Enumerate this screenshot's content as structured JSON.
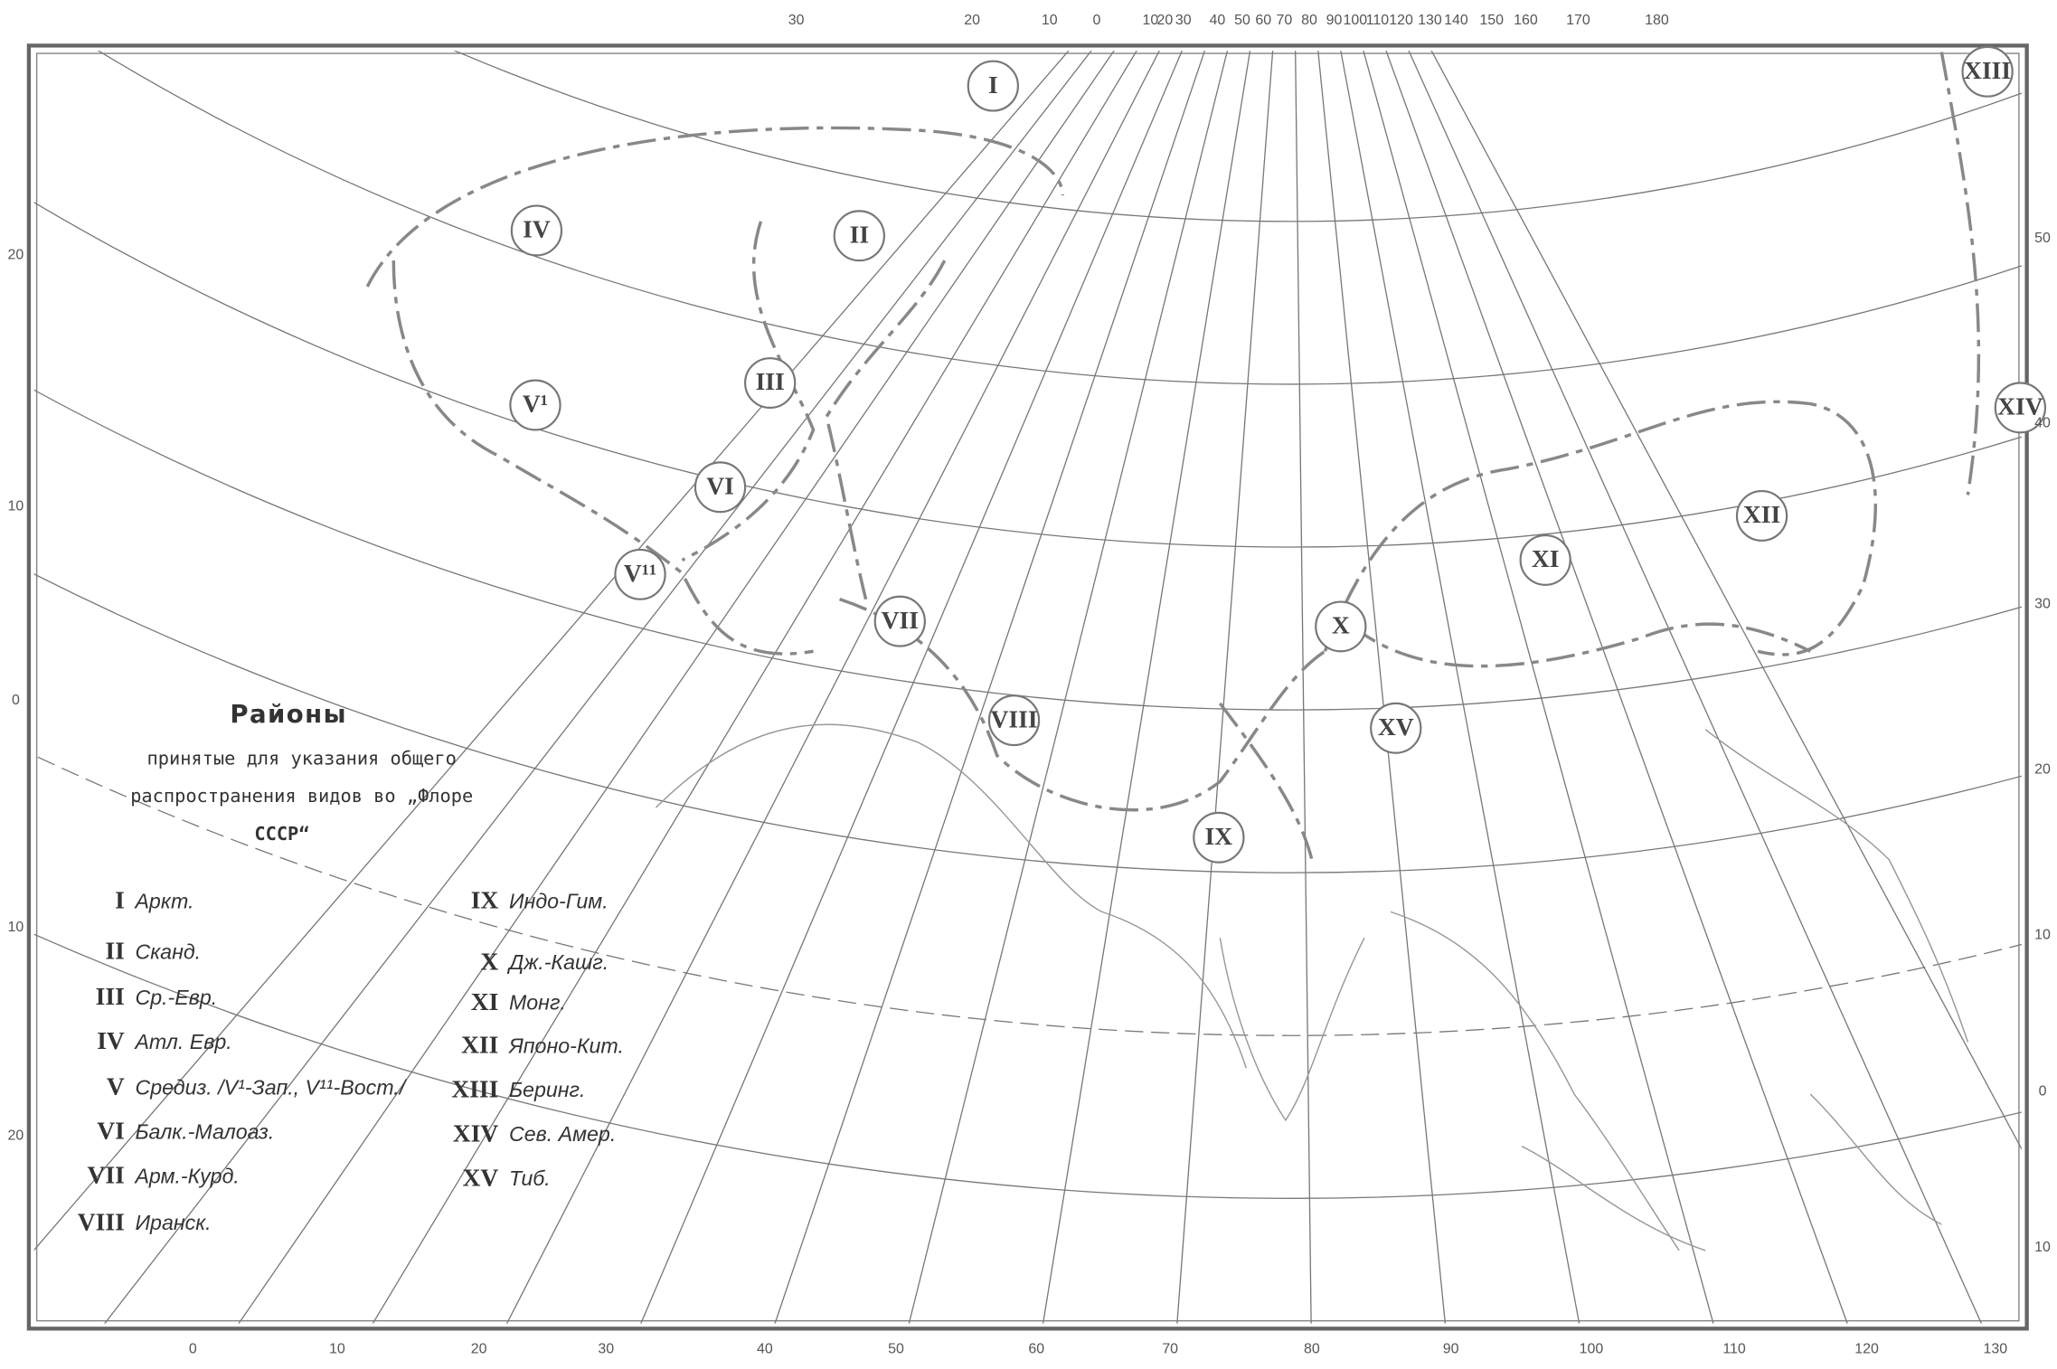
{
  "title": "Районы",
  "subtitle_lines": [
    "принятые для указания общего",
    "распространения видов во „Флоре",
    "СССР“"
  ],
  "legend": [
    {
      "numeral": "I",
      "name": "Аркт."
    },
    {
      "numeral": "II",
      "name": "Сканд."
    },
    {
      "numeral": "III",
      "name": "Ср.-Евр."
    },
    {
      "numeral": "IV",
      "name": "Атл. Евр."
    },
    {
      "numeral": "V",
      "name": "Средиз. /V¹-Зап., V¹¹-Вост./"
    },
    {
      "numeral": "VI",
      "name": "Балк.-Малоаз."
    },
    {
      "numeral": "VII",
      "name": "Арм.-Курд."
    },
    {
      "numeral": "VIII",
      "name": "Иранск."
    },
    {
      "numeral": "IX",
      "name": "Индо-Гим."
    },
    {
      "numeral": "X",
      "name": "Дж.-Кашг."
    },
    {
      "numeral": "XI",
      "name": "Монг."
    },
    {
      "numeral": "XII",
      "name": "Японо-Кит."
    },
    {
      "numeral": "XIII",
      "name": "Беринг."
    },
    {
      "numeral": "XIV",
      "name": "Сев. Амер."
    },
    {
      "numeral": "XV",
      "name": "Тиб."
    }
  ],
  "map_labels": [
    "I",
    "II",
    "III",
    "IV",
    "V¹",
    "V¹¹",
    "VI",
    "VII",
    "VIII",
    "IX",
    "X",
    "XI",
    "XII",
    "XIII",
    "XIV",
    "XV"
  ],
  "top_scale": [
    "30",
    "20",
    "10",
    "0",
    "10",
    "20",
    "30",
    "40",
    "50",
    "60",
    "70",
    "80",
    "90",
    "100",
    "110",
    "120",
    "130",
    "140",
    "150",
    "160",
    "170",
    "180"
  ],
  "bottom_scale": [
    "0",
    "10",
    "20",
    "30",
    "40",
    "50",
    "60",
    "70",
    "80",
    "90",
    "100",
    "110",
    "120",
    "130"
  ],
  "left_scale": [
    "20",
    "10",
    "0",
    "10",
    "20"
  ],
  "right_scale": [
    "50",
    "40",
    "30",
    "20",
    "10",
    "0",
    "10"
  ]
}
